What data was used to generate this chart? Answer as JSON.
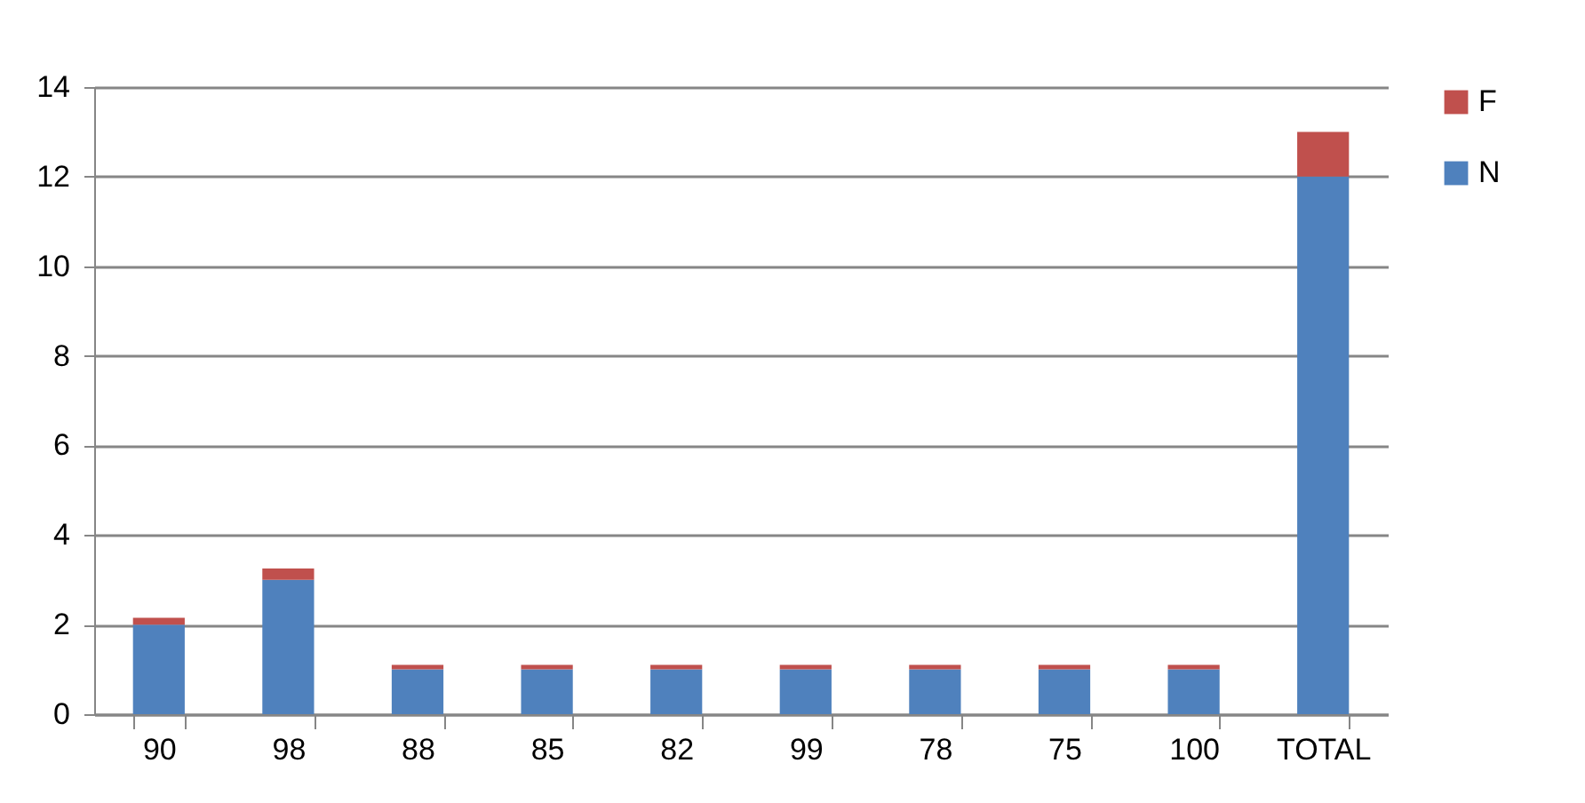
{
  "chart_data": {
    "type": "bar",
    "stacked": true,
    "categories": [
      "90",
      "98",
      "88",
      "85",
      "82",
      "99",
      "78",
      "75",
      "100",
      "TOTAL"
    ],
    "series": [
      {
        "name": "N",
        "color": "#4f81bd",
        "values": [
          2,
          3,
          1,
          1,
          1,
          1,
          1,
          1,
          1,
          12
        ]
      },
      {
        "name": "F",
        "color": "#c0504d",
        "values": [
          0.15,
          0.25,
          0.1,
          0.1,
          0.1,
          0.1,
          0.1,
          0.1,
          0.1,
          1
        ]
      }
    ],
    "ylim": [
      0,
      14
    ],
    "yticks": [
      0,
      2,
      4,
      6,
      8,
      10,
      12,
      14
    ],
    "grid": "y",
    "legend": "right"
  }
}
